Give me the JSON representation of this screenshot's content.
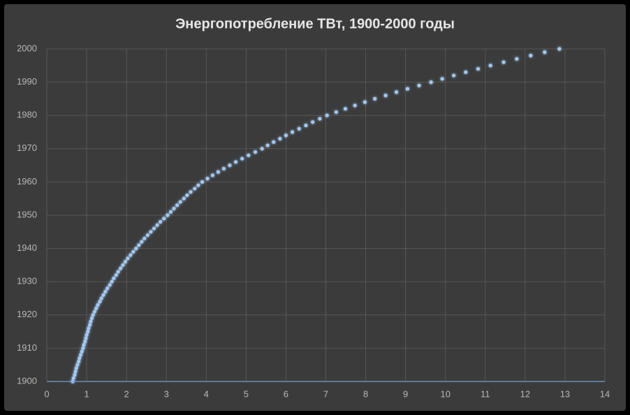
{
  "chart_data": {
    "type": "scatter",
    "title": "Энергопотребление ТВт, 1900-2000 годы",
    "color": "#a3c8f0",
    "grid": true,
    "xlim": [
      0,
      14
    ],
    "ylim": [
      1900,
      2000
    ],
    "xticks": [
      0,
      1,
      2,
      3,
      4,
      5,
      6,
      7,
      8,
      9,
      10,
      11,
      12,
      13,
      14
    ],
    "yticks": [
      1900,
      1910,
      1920,
      1930,
      1940,
      1950,
      1960,
      1970,
      1980,
      1990,
      2000
    ],
    "x": [
      0.65,
      0.67,
      0.7,
      0.72,
      0.74,
      0.77,
      0.8,
      0.82,
      0.85,
      0.88,
      0.91,
      0.93,
      0.96,
      0.98,
      1.0,
      1.03,
      1.05,
      1.08,
      1.1,
      1.13,
      1.16,
      1.2,
      1.24,
      1.28,
      1.33,
      1.37,
      1.42,
      1.47,
      1.52,
      1.58,
      1.63,
      1.68,
      1.74,
      1.79,
      1.85,
      1.91,
      1.97,
      2.03,
      2.1,
      2.17,
      2.24,
      2.31,
      2.38,
      2.45,
      2.53,
      2.61,
      2.69,
      2.77,
      2.85,
      2.94,
      3.03,
      3.11,
      3.19,
      3.27,
      3.35,
      3.44,
      3.52,
      3.61,
      3.71,
      3.8,
      3.9,
      4.03,
      4.16,
      4.3,
      4.44,
      4.59,
      4.74,
      4.9,
      5.06,
      5.23,
      5.4,
      5.54,
      5.69,
      5.85,
      6.0,
      6.16,
      6.33,
      6.5,
      6.67,
      6.85,
      7.03,
      7.26,
      7.49,
      7.73,
      7.98,
      8.23,
      8.5,
      8.77,
      9.05,
      9.34,
      9.64,
      9.92,
      10.21,
      10.51,
      10.82,
      11.13,
      11.46,
      11.79,
      12.14,
      12.49,
      12.86
    ],
    "values": [
      1900,
      1901,
      1902,
      1903,
      1904,
      1905,
      1906,
      1907,
      1908,
      1909,
      1910,
      1911,
      1912,
      1913,
      1914,
      1915,
      1916,
      1917,
      1918,
      1919,
      1920,
      1921,
      1922,
      1923,
      1924,
      1925,
      1926,
      1927,
      1928,
      1929,
      1930,
      1931,
      1932,
      1933,
      1934,
      1935,
      1936,
      1937,
      1938,
      1939,
      1940,
      1941,
      1942,
      1943,
      1944,
      1945,
      1946,
      1947,
      1948,
      1949,
      1950,
      1951,
      1952,
      1953,
      1954,
      1955,
      1956,
      1957,
      1958,
      1959,
      1960,
      1961,
      1962,
      1963,
      1964,
      1965,
      1966,
      1967,
      1968,
      1969,
      1970,
      1971,
      1972,
      1973,
      1974,
      1975,
      1976,
      1977,
      1978,
      1979,
      1980,
      1981,
      1982,
      1983,
      1984,
      1985,
      1986,
      1987,
      1988,
      1989,
      1990,
      1991,
      1992,
      1993,
      1994,
      1995,
      1996,
      1997,
      1998,
      1999,
      2000
    ]
  }
}
